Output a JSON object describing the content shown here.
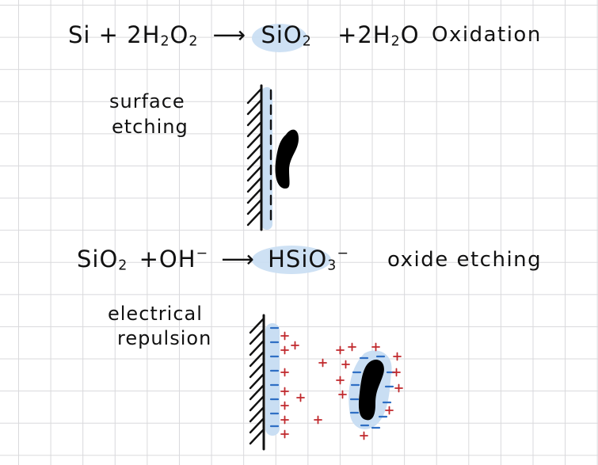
{
  "reaction1": {
    "left": "Si + 2H",
    "left_sub1": "2",
    "left_o": "O",
    "left_sub2": "2",
    "arrow": "⟶",
    "product": "SiO",
    "product_sub": "2",
    "plus_water": "+2H",
    "water_sub": "2",
    "water_o": "O",
    "label": "Oxidation"
  },
  "surface_etching_label": [
    "surface",
    "etching"
  ],
  "reaction2": {
    "left": "SiO",
    "left_sub": "2",
    "plus_oh": "+OH",
    "oh_charge": "−",
    "arrow": "⟶",
    "product": "HSiO",
    "product_sub": "3",
    "product_charge": "−",
    "label": "oxide etching"
  },
  "electrical_repulsion_label": [
    "electrical",
    "repulsion"
  ],
  "colors": {
    "ink": "#111111",
    "highlight": "#c9def3",
    "positive": "#c0282c",
    "negative": "#2f6fc4"
  }
}
